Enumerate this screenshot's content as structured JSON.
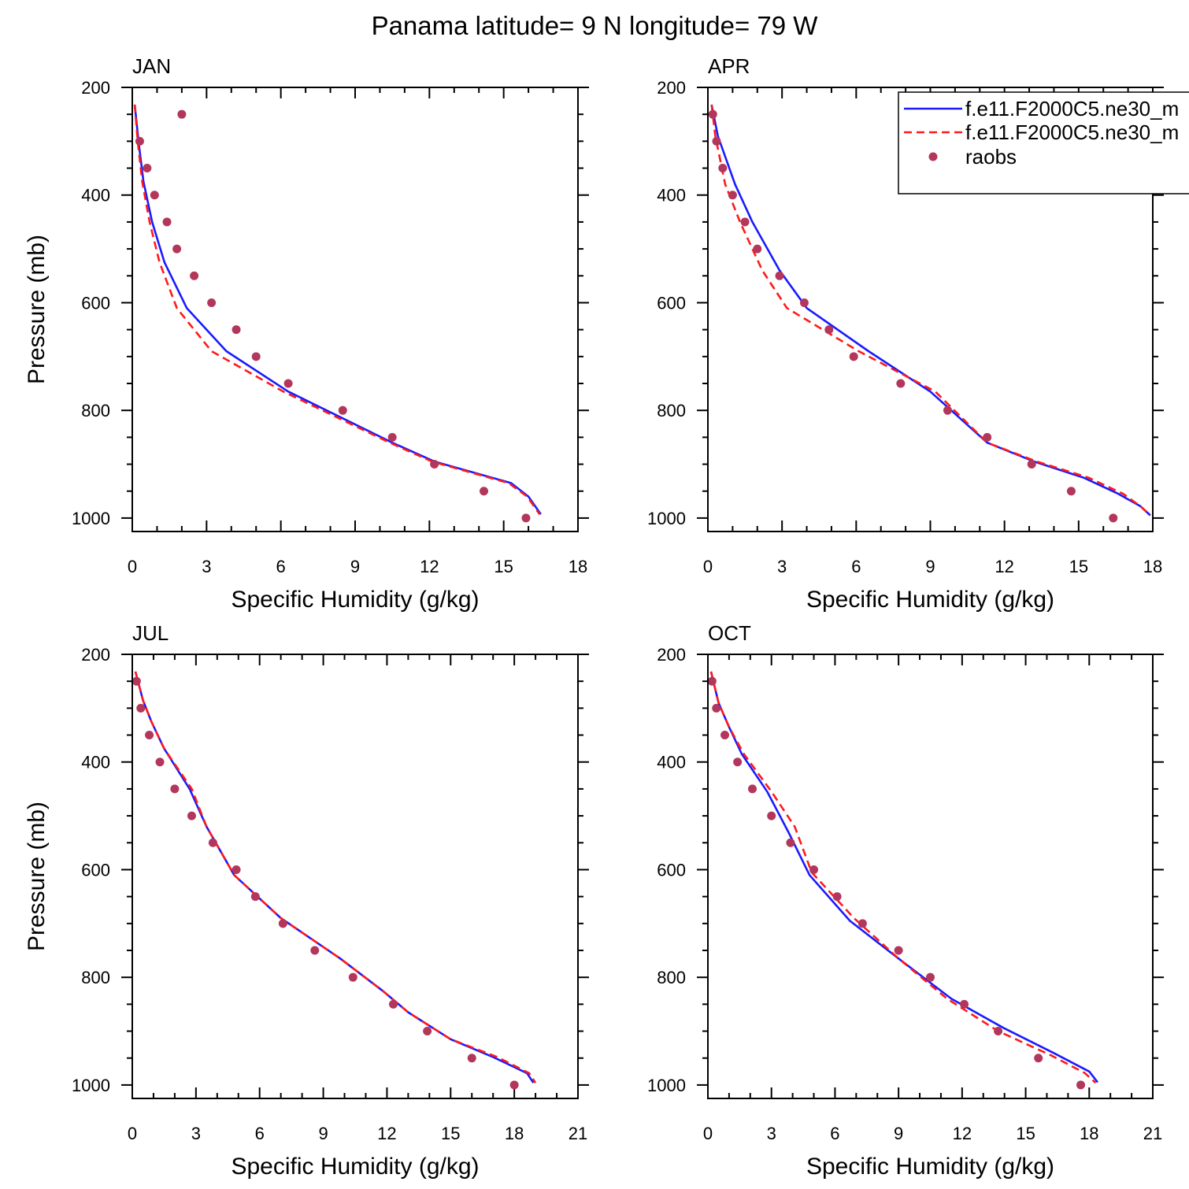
{
  "figure_title": "Panama  latitude= 9 N longitude= 79 W",
  "colors": {
    "model1": "#1a1aff",
    "model2": "#ff1a1a",
    "obs": "#b3365b"
  },
  "legend": {
    "placement": "top-right of APR panel (clipped at figure edge)",
    "entries": [
      "f.e11.F2000C5.ne30_m",
      "f.e11.F2000C5.ne30_m",
      "raobs"
    ]
  },
  "chart_data": [
    {
      "type": "line",
      "panel": "JAN",
      "title": "JAN",
      "xlabel": "Specific Humidity (g/kg)",
      "ylabel": "Pressure (mb)",
      "xlim": [
        0,
        18
      ],
      "ylim": [
        1025,
        200
      ],
      "y_inverted": true,
      "xticks": [
        0,
        3,
        6,
        9,
        12,
        15,
        18
      ],
      "yticks": [
        200,
        400,
        600,
        800,
        1000
      ],
      "series": [
        {
          "name": "f.e11.F2000C5.ne30_m",
          "style": "solid",
          "color": "#1a1aff",
          "x": [
            0.1,
            0.25,
            0.45,
            0.8,
            1.3,
            2.2,
            3.8,
            6.3,
            10.5,
            12.2,
            15.3,
            16.0,
            16.5
          ],
          "y": [
            232,
            300,
            375,
            450,
            525,
            610,
            690,
            765,
            860,
            895,
            935,
            960,
            993
          ]
        },
        {
          "name": "f.e11.F2000C5.ne30_m",
          "style": "dashed",
          "color": "#ff1a1a",
          "x": [
            0.1,
            0.22,
            0.4,
            0.7,
            1.1,
            1.8,
            3.2,
            6.1,
            10.4,
            12.1,
            15.2,
            15.95,
            16.45
          ],
          "y": [
            232,
            300,
            375,
            450,
            525,
            610,
            690,
            765,
            860,
            895,
            935,
            960,
            993
          ]
        },
        {
          "name": "raobs",
          "style": "markers",
          "color": "#b3365b",
          "x": [
            2.0,
            0.3,
            0.6,
            0.9,
            1.4,
            1.8,
            2.5,
            3.2,
            4.2,
            5.0,
            6.3,
            8.5,
            10.5,
            12.2,
            14.2,
            15.9
          ],
          "y": [
            250,
            300,
            350,
            400,
            450,
            500,
            550,
            600,
            650,
            700,
            750,
            800,
            850,
            900,
            950,
            1000
          ]
        }
      ]
    },
    {
      "type": "line",
      "panel": "APR",
      "title": "APR",
      "xlabel": "Specific Humidity (g/kg)",
      "ylabel": "",
      "xlim": [
        0,
        18
      ],
      "ylim": [
        1025,
        200
      ],
      "y_inverted": true,
      "xticks": [
        0,
        3,
        6,
        9,
        12,
        15,
        18
      ],
      "yticks": [
        200,
        400,
        600,
        800,
        1000
      ],
      "series": [
        {
          "name": "f.e11.F2000C5.ne30_m",
          "style": "solid",
          "color": "#1a1aff",
          "x": [
            0.15,
            0.4,
            1.1,
            1.8,
            2.9,
            4.0,
            6.5,
            9.0,
            11.3,
            13.2,
            15.2,
            16.6,
            17.5,
            17.9
          ],
          "y": [
            232,
            290,
            380,
            450,
            540,
            610,
            690,
            765,
            860,
            895,
            925,
            955,
            978,
            995
          ]
        },
        {
          "name": "f.e11.F2000C5.ne30_m",
          "style": "dashed",
          "color": "#ff1a1a",
          "x": [
            0.15,
            0.3,
            0.7,
            1.3,
            2.2,
            3.2,
            6.1,
            9.2,
            11.3,
            13.3,
            15.4,
            16.8,
            17.5,
            17.9
          ],
          "y": [
            232,
            290,
            380,
            450,
            540,
            610,
            690,
            765,
            860,
            895,
            925,
            955,
            978,
            995
          ]
        },
        {
          "name": "raobs",
          "style": "markers",
          "color": "#b3365b",
          "x": [
            0.2,
            0.35,
            0.6,
            1.0,
            1.5,
            2.0,
            2.9,
            3.9,
            4.9,
            5.9,
            7.8,
            9.7,
            11.3,
            13.1,
            14.7,
            16.4
          ],
          "y": [
            250,
            300,
            350,
            400,
            450,
            500,
            550,
            600,
            650,
            700,
            750,
            800,
            850,
            900,
            950,
            1000
          ]
        }
      ]
    },
    {
      "type": "line",
      "panel": "JUL",
      "title": "JUL",
      "xlabel": "Specific Humidity (g/kg)",
      "ylabel": "Pressure (mb)",
      "xlim": [
        0,
        21
      ],
      "ylim": [
        1025,
        200
      ],
      "y_inverted": true,
      "xticks": [
        0,
        3,
        6,
        9,
        12,
        15,
        18,
        21
      ],
      "yticks": [
        200,
        400,
        600,
        800,
        1000
      ],
      "series": [
        {
          "name": "f.e11.F2000C5.ne30_m",
          "style": "solid",
          "color": "#1a1aff",
          "x": [
            0.15,
            0.5,
            0.9,
            1.5,
            2.7,
            3.5,
            4.8,
            7.0,
            9.8,
            11.8,
            13.0,
            15.0,
            17.0,
            18.6,
            18.9
          ],
          "y": [
            232,
            285,
            325,
            375,
            450,
            520,
            610,
            690,
            765,
            825,
            865,
            915,
            948,
            978,
            996
          ]
        },
        {
          "name": "f.e11.F2000C5.ne30_m",
          "style": "dashed",
          "color": "#ff1a1a",
          "x": [
            0.15,
            0.5,
            0.9,
            1.5,
            2.8,
            3.5,
            4.8,
            7.0,
            9.8,
            11.8,
            13.0,
            15.0,
            17.2,
            18.7,
            19.0
          ],
          "y": [
            232,
            285,
            325,
            375,
            450,
            520,
            610,
            690,
            765,
            825,
            865,
            915,
            948,
            978,
            996
          ]
        },
        {
          "name": "raobs",
          "style": "markers",
          "color": "#b3365b",
          "x": [
            0.2,
            0.4,
            0.8,
            1.3,
            2.0,
            2.8,
            3.8,
            4.9,
            5.8,
            7.1,
            8.6,
            10.4,
            12.3,
            13.9,
            16.0,
            18.0
          ],
          "y": [
            250,
            300,
            350,
            400,
            450,
            500,
            550,
            600,
            650,
            700,
            750,
            800,
            850,
            900,
            950,
            1000
          ]
        }
      ]
    },
    {
      "type": "line",
      "panel": "OCT",
      "title": "OCT",
      "xlabel": "Specific Humidity (g/kg)",
      "ylabel": "",
      "xlim": [
        0,
        21
      ],
      "ylim": [
        1025,
        200
      ],
      "y_inverted": true,
      "xticks": [
        0,
        3,
        6,
        9,
        12,
        15,
        18,
        21
      ],
      "yticks": [
        200,
        400,
        600,
        800,
        1000
      ],
      "series": [
        {
          "name": "f.e11.F2000C5.ne30_m",
          "style": "solid",
          "color": "#1a1aff",
          "x": [
            0.15,
            0.5,
            1.0,
            1.6,
            2.8,
            3.8,
            4.8,
            6.7,
            9.0,
            11.5,
            14.0,
            16.3,
            18.0,
            18.4
          ],
          "y": [
            232,
            290,
            335,
            385,
            455,
            530,
            610,
            695,
            765,
            840,
            895,
            940,
            975,
            995
          ]
        },
        {
          "name": "f.e11.F2000C5.ne30_m",
          "style": "dashed",
          "color": "#ff1a1a",
          "x": [
            0.15,
            0.5,
            1.0,
            1.7,
            3.0,
            4.1,
            4.9,
            6.9,
            9.0,
            11.3,
            13.7,
            16.2,
            17.8,
            18.3
          ],
          "y": [
            232,
            290,
            335,
            385,
            455,
            520,
            605,
            690,
            765,
            840,
            900,
            945,
            978,
            996
          ]
        },
        {
          "name": "raobs",
          "style": "markers",
          "color": "#b3365b",
          "x": [
            0.2,
            0.4,
            0.8,
            1.4,
            2.1,
            3.0,
            3.9,
            5.0,
            6.1,
            7.3,
            9.0,
            10.5,
            12.1,
            13.7,
            15.6,
            17.6
          ],
          "y": [
            250,
            300,
            350,
            400,
            450,
            500,
            550,
            600,
            650,
            700,
            750,
            800,
            850,
            900,
            950,
            1000
          ]
        }
      ]
    }
  ]
}
